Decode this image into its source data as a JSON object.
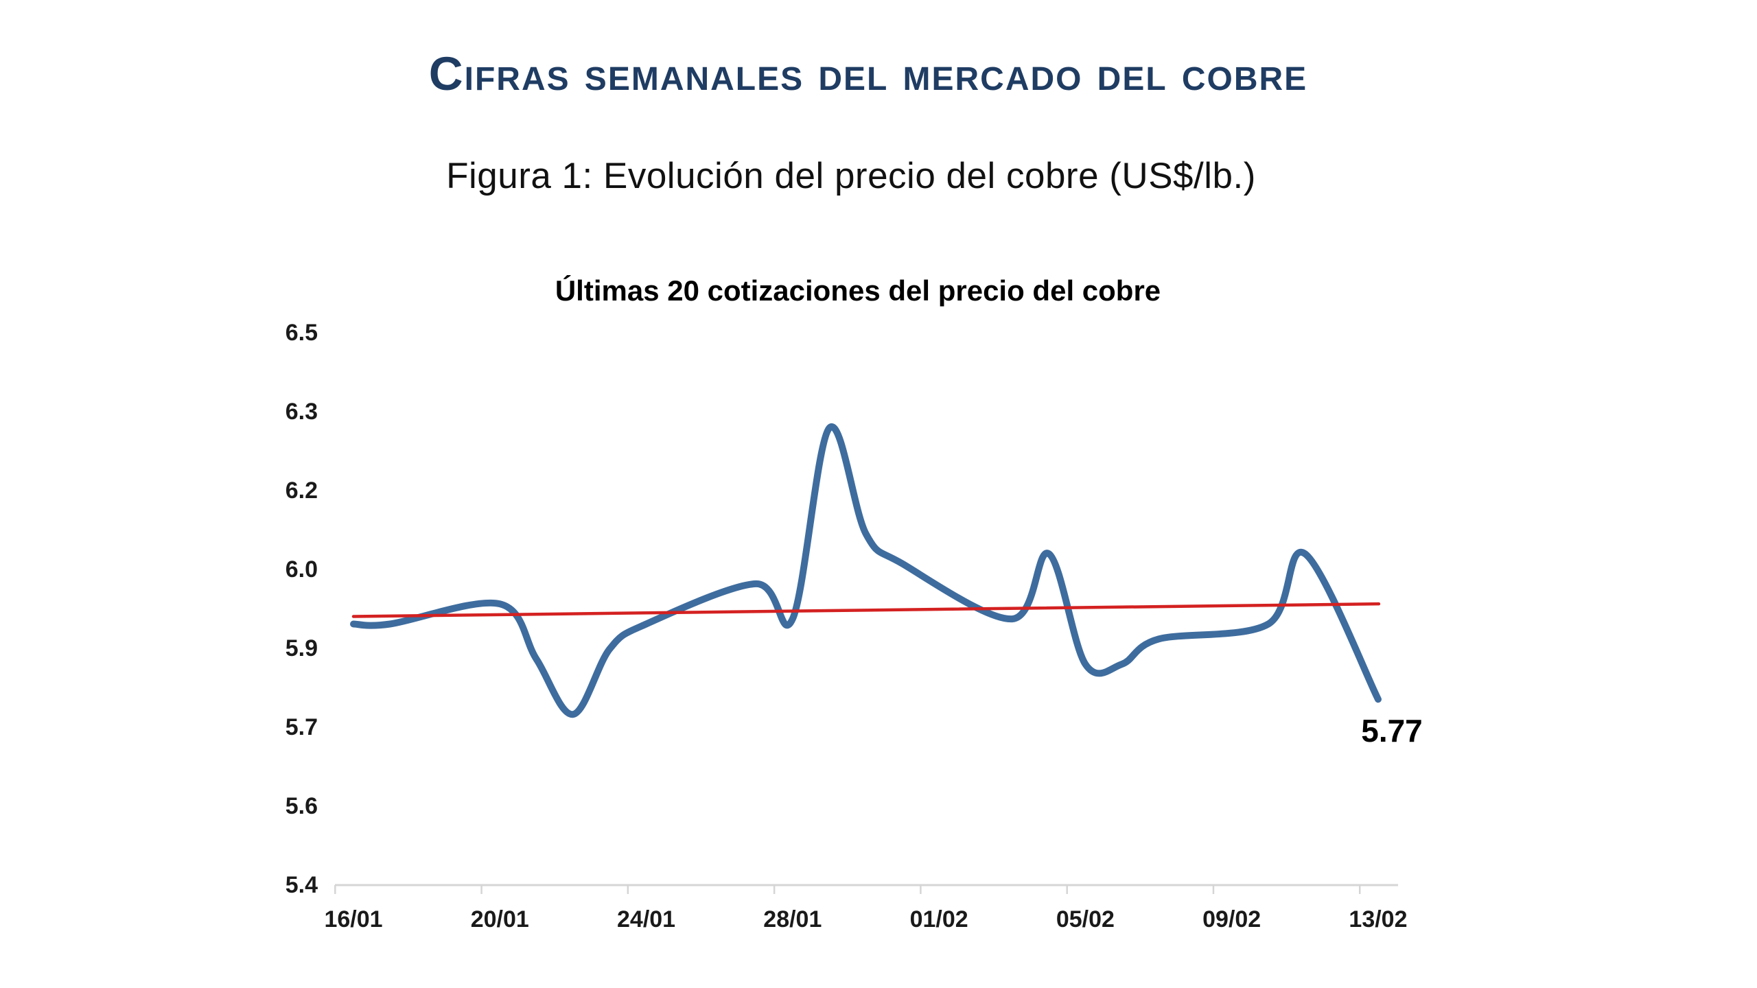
{
  "page": {
    "title": "Cifras semanales del mercado del cobre",
    "figure_caption": "Figura 1: Evolución del precio del cobre (US$/lb.)"
  },
  "chart_data": {
    "type": "line",
    "title": "Últimas 20 cotizaciones del precio del cobre",
    "xlabel": "",
    "ylabel": "",
    "units": "US$/lb.",
    "ylim": [
      5.4,
      6.5
    ],
    "y_tick_labels": [
      "6.5",
      "6.3",
      "6.2",
      "6.0",
      "5.9",
      "5.7",
      "5.6",
      "5.4"
    ],
    "x_tick_labels": [
      "16/01",
      "20/01",
      "24/01",
      "28/01",
      "01/02",
      "05/02",
      "09/02",
      "13/02"
    ],
    "x_tick_days": [
      0,
      4,
      8,
      12,
      16,
      20,
      24,
      28
    ],
    "x_day_span": [
      0,
      28
    ],
    "gridlines": "none",
    "legend": "none",
    "smooth": true,
    "series": [
      {
        "name": "Precio del cobre",
        "color": "#3E6C9E",
        "points": [
          {
            "day": 0,
            "value": 5.92
          },
          {
            "day": 1,
            "value": 5.92
          },
          {
            "day": 4,
            "value": 5.96
          },
          {
            "day": 5,
            "value": 5.85
          },
          {
            "day": 6,
            "value": 5.74
          },
          {
            "day": 7,
            "value": 5.87
          },
          {
            "day": 8,
            "value": 5.92
          },
          {
            "day": 11,
            "value": 6.0
          },
          {
            "day": 12,
            "value": 5.93
          },
          {
            "day": 13,
            "value": 6.31
          },
          {
            "day": 14,
            "value": 6.1
          },
          {
            "day": 15,
            "value": 6.04
          },
          {
            "day": 18,
            "value": 5.93
          },
          {
            "day": 19,
            "value": 6.06
          },
          {
            "day": 20,
            "value": 5.84
          },
          {
            "day": 21,
            "value": 5.84
          },
          {
            "day": 22,
            "value": 5.89
          },
          {
            "day": 25,
            "value": 5.92
          },
          {
            "day": 26,
            "value": 6.06
          },
          {
            "day": 28,
            "value": 5.77
          }
        ]
      }
    ],
    "trendline": {
      "start_value": 5.935,
      "end_value": 5.96,
      "color": "#D42121"
    },
    "last_point_label": "5.77",
    "axis_color": "#D5D5D5"
  }
}
